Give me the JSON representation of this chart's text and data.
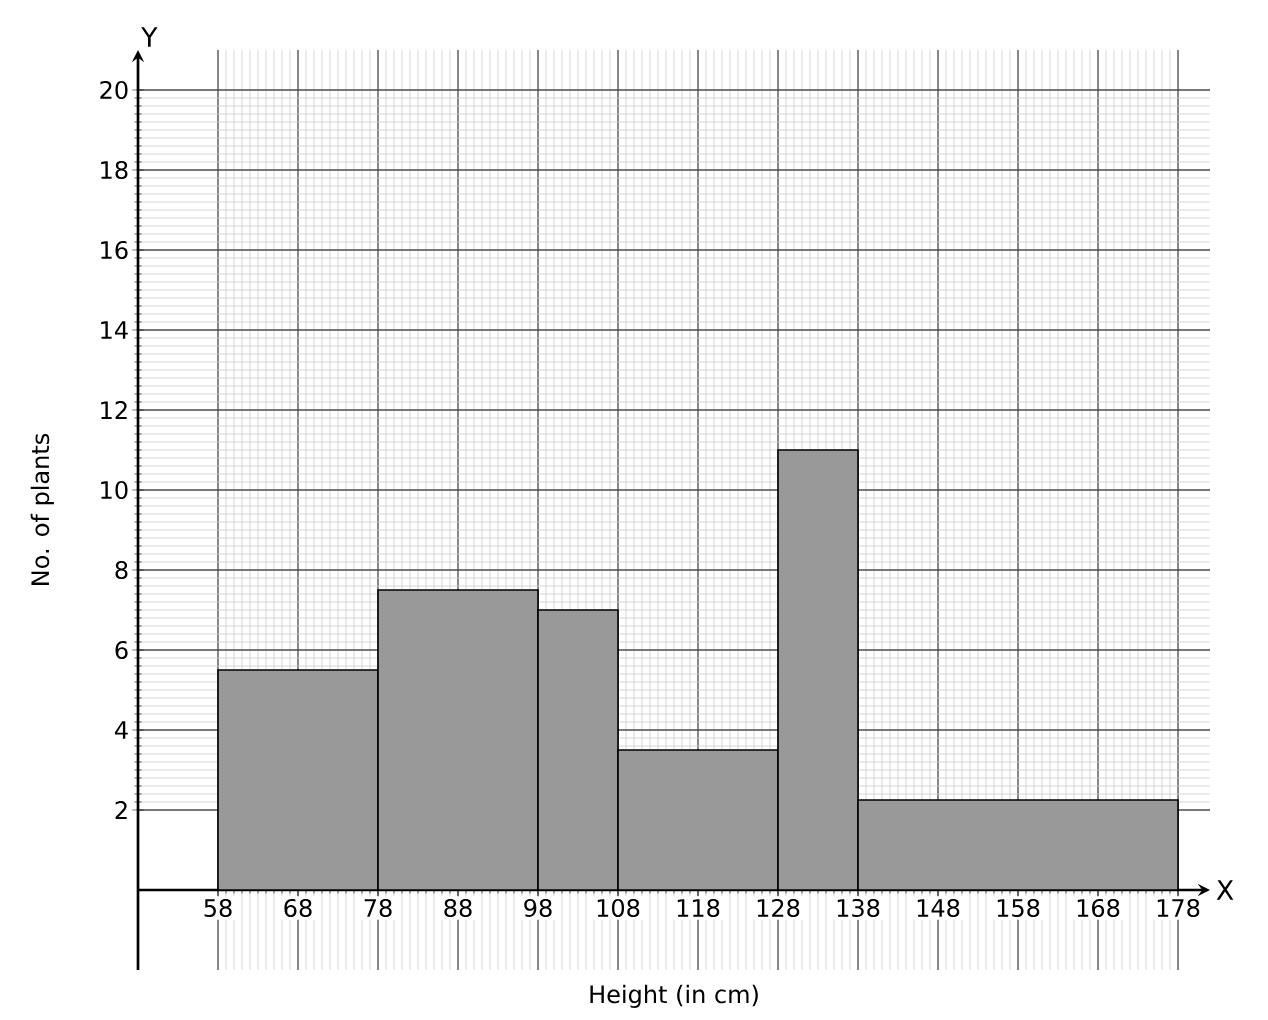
{
  "chart_data": {
    "type": "histogram",
    "xlabel": "Height (in cm)",
    "ylabel": "No. of plants",
    "bins": [
      58,
      78,
      98,
      108,
      128,
      138,
      178
    ],
    "values": [
      5.5,
      7.5,
      7,
      3.5,
      11,
      2.25
    ],
    "color": "#999999",
    "xlim": [
      48,
      182
    ],
    "ylim": [
      -2,
      21
    ],
    "xticks": [
      58,
      68,
      78,
      88,
      98,
      108,
      118,
      128,
      138,
      148,
      158,
      168,
      178
    ],
    "yticks": [
      2,
      4,
      6,
      8,
      10,
      12,
      14,
      16,
      18,
      20
    ],
    "grid": true,
    "annotations": [
      "Y",
      "X"
    ]
  }
}
